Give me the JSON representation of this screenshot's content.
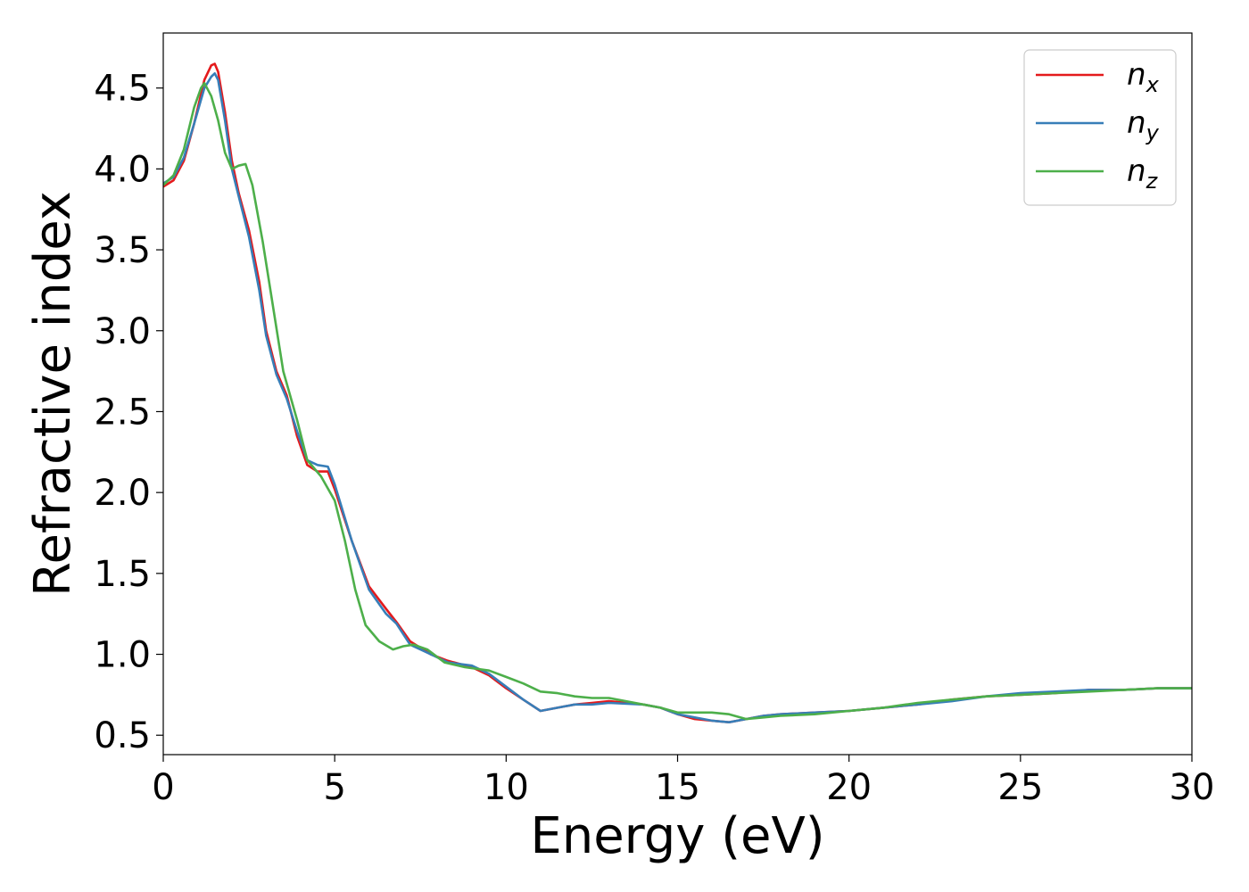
{
  "chart_data": {
    "type": "line",
    "title": "",
    "xlabel": "Energy (eV)",
    "ylabel": "Refractive index",
    "xlim": [
      0,
      30
    ],
    "ylim": [
      0.38,
      4.84
    ],
    "xticks": [
      0,
      5,
      10,
      15,
      20,
      25,
      30
    ],
    "xtick_labels": [
      "0",
      "5",
      "10",
      "15",
      "20",
      "25",
      "30"
    ],
    "yticks": [
      0.5,
      1.0,
      1.5,
      2.0,
      2.5,
      3.0,
      3.5,
      4.0,
      4.5
    ],
    "ytick_labels": [
      "0.5",
      "1.0",
      "1.5",
      "2.0",
      "2.5",
      "3.0",
      "3.5",
      "4.0",
      "4.5"
    ],
    "grid": false,
    "legend_position": "top-right",
    "series": [
      {
        "name": "n",
        "subscript": "x",
        "color": "#e41a1c",
        "x": [
          0,
          0.3,
          0.6,
          0.9,
          1.2,
          1.4,
          1.5,
          1.6,
          1.8,
          2.0,
          2.2,
          2.5,
          2.8,
          3.0,
          3.3,
          3.6,
          3.9,
          4.2,
          4.5,
          4.8,
          5.0,
          5.5,
          6.0,
          6.5,
          6.8,
          7.2,
          7.8,
          8.3,
          9.0,
          9.5,
          10.0,
          10.5,
          11.0,
          11.5,
          12.0,
          12.5,
          13.0,
          14.0,
          14.5,
          15.0,
          15.5,
          16.0,
          16.5,
          17.0,
          17.5,
          18.0,
          19.0,
          20.0,
          21.0,
          22.0,
          23.0,
          24.0,
          25.0,
          26.0,
          27.0,
          28.0,
          29.0,
          30.0
        ],
        "y": [
          3.89,
          3.93,
          4.05,
          4.28,
          4.55,
          4.64,
          4.65,
          4.6,
          4.35,
          4.05,
          3.85,
          3.62,
          3.3,
          3.0,
          2.75,
          2.6,
          2.35,
          2.17,
          2.13,
          2.13,
          2.02,
          1.7,
          1.42,
          1.28,
          1.2,
          1.08,
          1.0,
          0.96,
          0.92,
          0.87,
          0.79,
          0.72,
          0.65,
          0.67,
          0.69,
          0.7,
          0.71,
          0.69,
          0.67,
          0.63,
          0.6,
          0.59,
          0.58,
          0.6,
          0.62,
          0.63,
          0.64,
          0.65,
          0.67,
          0.69,
          0.72,
          0.74,
          0.75,
          0.76,
          0.78,
          0.78,
          0.79,
          0.79
        ]
      },
      {
        "name": "n",
        "subscript": "y",
        "color": "#377eb8",
        "x": [
          0,
          0.3,
          0.6,
          0.9,
          1.2,
          1.4,
          1.5,
          1.6,
          1.8,
          2.0,
          2.2,
          2.5,
          2.8,
          3.0,
          3.3,
          3.6,
          3.9,
          4.2,
          4.5,
          4.8,
          5.0,
          5.5,
          6.0,
          6.5,
          6.8,
          7.2,
          7.8,
          8.3,
          9.0,
          9.5,
          10.0,
          10.5,
          11.0,
          11.5,
          12.0,
          12.5,
          13.0,
          14.0,
          14.5,
          15.0,
          15.5,
          16.0,
          16.5,
          17.0,
          17.5,
          18.0,
          19.0,
          20.0,
          21.0,
          22.0,
          23.0,
          24.0,
          25.0,
          26.0,
          27.0,
          28.0,
          29.0,
          30.0
        ],
        "y": [
          3.91,
          3.95,
          4.07,
          4.28,
          4.5,
          4.57,
          4.59,
          4.55,
          4.3,
          4.0,
          3.83,
          3.58,
          3.25,
          2.97,
          2.73,
          2.58,
          2.38,
          2.2,
          2.17,
          2.16,
          2.05,
          1.7,
          1.4,
          1.25,
          1.19,
          1.06,
          1.0,
          0.95,
          0.93,
          0.88,
          0.8,
          0.72,
          0.65,
          0.67,
          0.69,
          0.69,
          0.7,
          0.69,
          0.67,
          0.63,
          0.61,
          0.59,
          0.58,
          0.6,
          0.62,
          0.63,
          0.64,
          0.65,
          0.67,
          0.69,
          0.71,
          0.74,
          0.76,
          0.77,
          0.78,
          0.78,
          0.79,
          0.79
        ]
      },
      {
        "name": "n",
        "subscript": "z",
        "color": "#4daf4a",
        "x": [
          0,
          0.3,
          0.6,
          0.9,
          1.1,
          1.2,
          1.4,
          1.6,
          1.8,
          2.0,
          2.2,
          2.4,
          2.6,
          2.9,
          3.2,
          3.5,
          3.9,
          4.2,
          4.6,
          5.0,
          5.3,
          5.6,
          5.9,
          6.3,
          6.7,
          7.0,
          7.3,
          7.7,
          8.2,
          8.8,
          9.5,
          10.0,
          10.5,
          11.0,
          11.5,
          12.0,
          12.5,
          13.0,
          13.5,
          14.0,
          14.5,
          15.0,
          15.5,
          16.0,
          16.5,
          17.0,
          17.5,
          18.0,
          19.0,
          20.0,
          21.0,
          22.0,
          23.0,
          24.0,
          25.0,
          26.0,
          27.0,
          28.0,
          29.0,
          30.0
        ],
        "y": [
          3.9,
          3.96,
          4.12,
          4.38,
          4.5,
          4.53,
          4.45,
          4.3,
          4.1,
          4.0,
          4.02,
          4.03,
          3.9,
          3.55,
          3.15,
          2.75,
          2.45,
          2.2,
          2.1,
          1.95,
          1.7,
          1.4,
          1.18,
          1.08,
          1.03,
          1.05,
          1.06,
          1.03,
          0.95,
          0.92,
          0.9,
          0.86,
          0.82,
          0.77,
          0.76,
          0.74,
          0.73,
          0.73,
          0.71,
          0.69,
          0.67,
          0.64,
          0.64,
          0.64,
          0.63,
          0.6,
          0.61,
          0.62,
          0.63,
          0.65,
          0.67,
          0.7,
          0.72,
          0.74,
          0.75,
          0.76,
          0.77,
          0.78,
          0.79,
          0.79
        ]
      }
    ]
  }
}
